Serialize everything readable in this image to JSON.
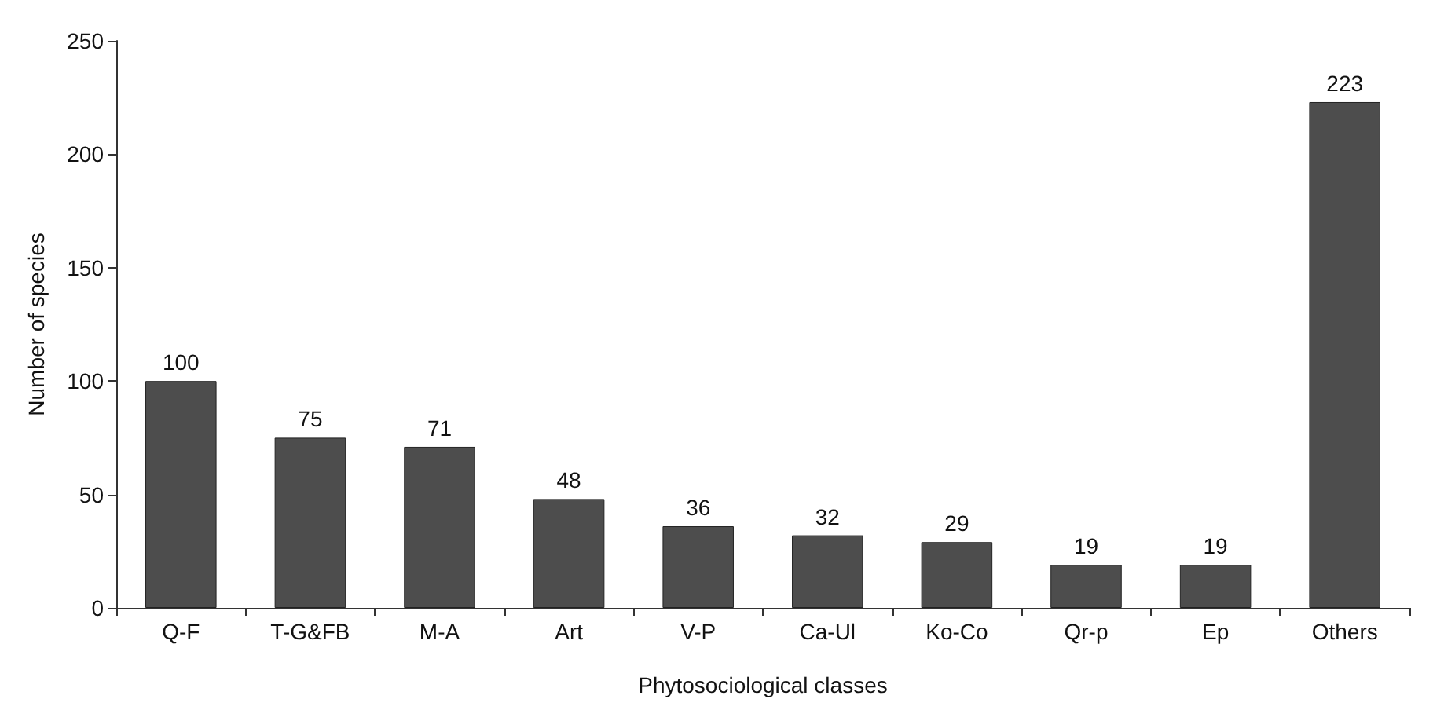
{
  "chart_data": {
    "type": "bar",
    "xlabel": "Phytosociological classes",
    "ylabel": "Number of species",
    "categories": [
      "Q-F",
      "T-G&FB",
      "M-A",
      "Art",
      "V-P",
      "Ca-Ul",
      "Ko-Co",
      "Qr-p",
      "Ep",
      "Others"
    ],
    "values": [
      100,
      75,
      71,
      48,
      36,
      32,
      29,
      19,
      19,
      223
    ],
    "color": "#4d4d4d",
    "ylim": [
      0,
      250
    ],
    "yticks": [
      0,
      50,
      100,
      150,
      200,
      250
    ],
    "grid": false,
    "data_labels": true
  }
}
